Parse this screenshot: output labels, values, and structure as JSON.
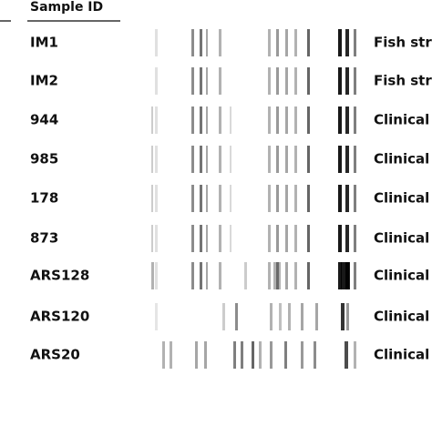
{
  "header": {
    "title": "Sample ID"
  },
  "rows": [
    {
      "id": "IM1",
      "source": "Fish stra"
    },
    {
      "id": "IM2",
      "source": "Fish stra"
    },
    {
      "id": "944",
      "source": "Clinical s"
    },
    {
      "id": "985",
      "source": "Clinical s"
    },
    {
      "id": "178",
      "source": "Clinical s"
    },
    {
      "id": "873",
      "source": "Clinical s"
    },
    {
      "id": "ARS128",
      "source": "Clinical s"
    },
    {
      "id": "ARS120",
      "source": "Clinical s"
    },
    {
      "id": "ARS20",
      "source": "Clinical s"
    }
  ]
}
